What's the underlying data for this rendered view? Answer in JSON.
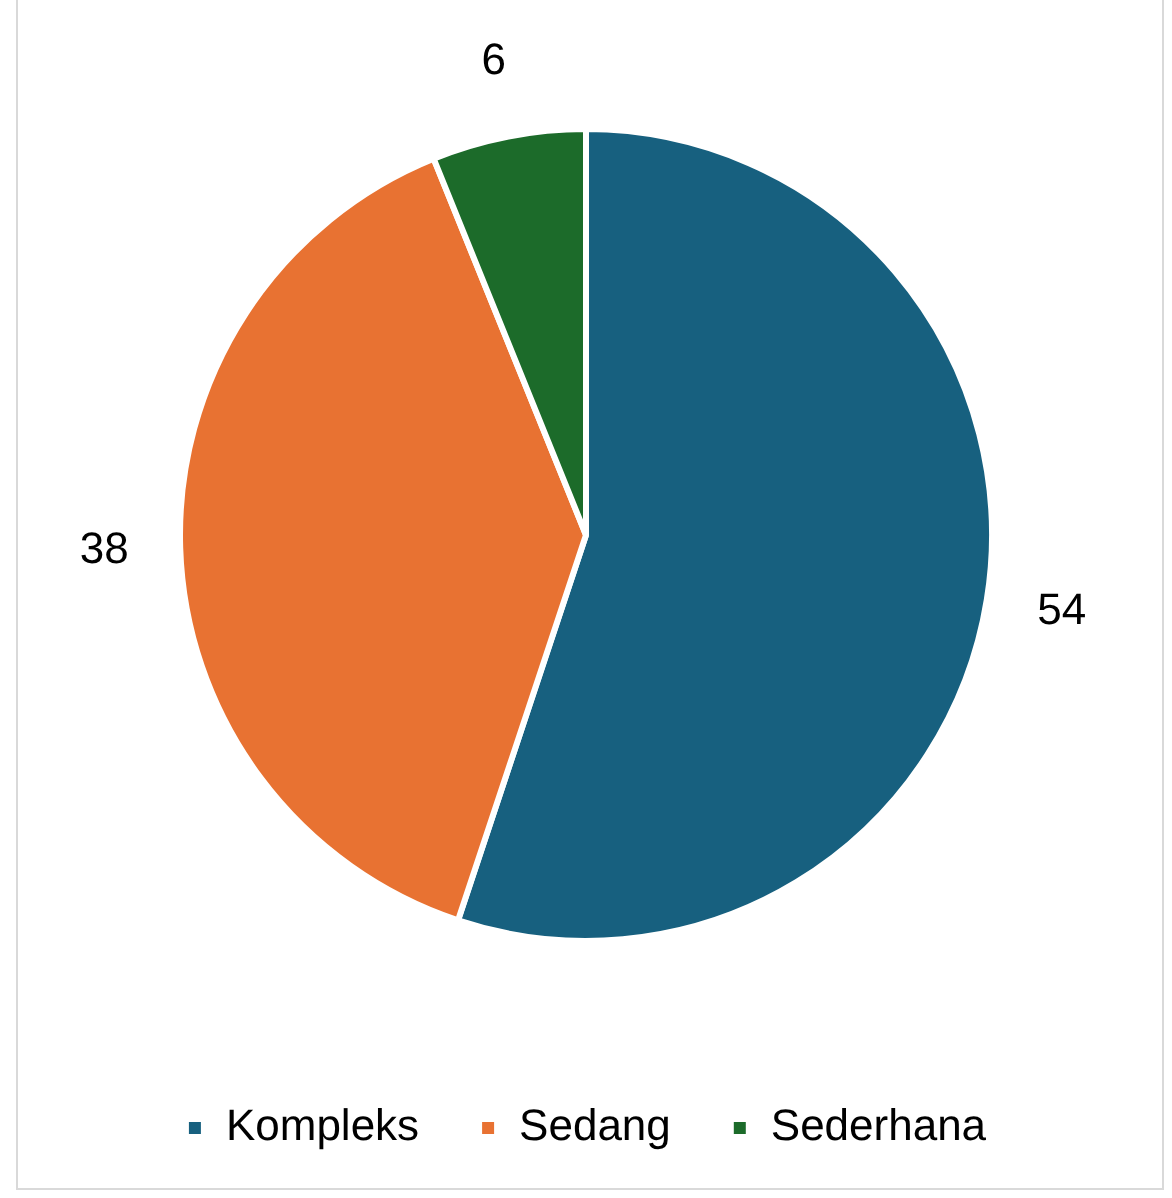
{
  "chart_data": {
    "type": "pie",
    "categories": [
      "Kompleks",
      "Sedang",
      "Sederhana"
    ],
    "values": [
      54,
      38,
      6
    ],
    "colors": [
      "#17607f",
      "#e87232",
      "#1c6b2a"
    ],
    "data_labels": true,
    "legend": "bottom"
  }
}
